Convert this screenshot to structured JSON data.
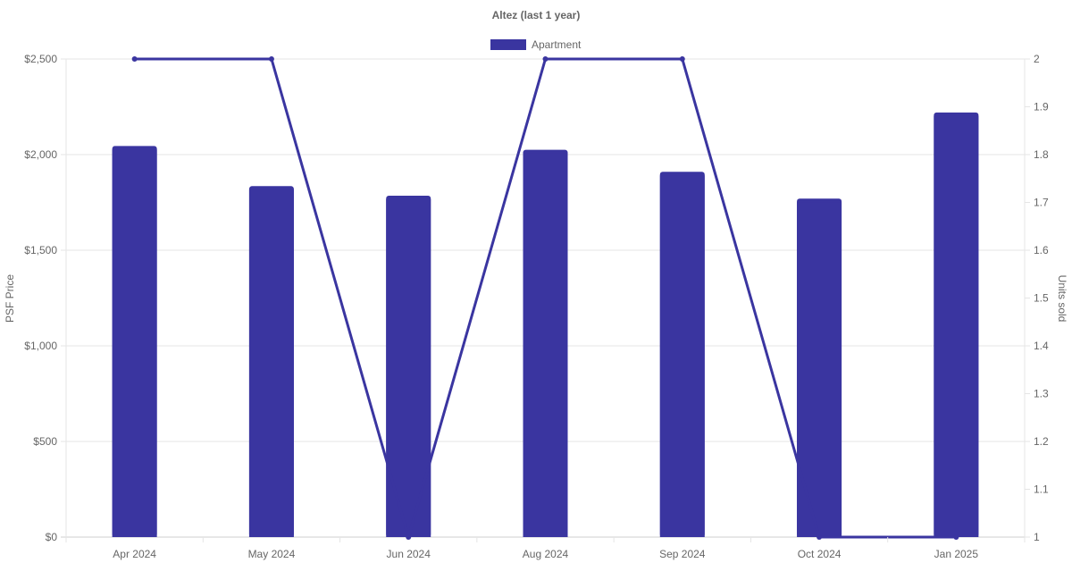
{
  "chart_data": {
    "type": "bar",
    "title": "Altez (last 1 year)",
    "categories": [
      "Apr 2024",
      "May 2024",
      "Jun 2024",
      "Aug 2024",
      "Sep 2024",
      "Oct 2024",
      "Jan 2025"
    ],
    "series": [
      {
        "name": "Apartment",
        "type": "bar",
        "axis": "left",
        "color": "#3a35a0",
        "values": [
          2045,
          1835,
          1785,
          2025,
          1910,
          1770,
          2220
        ]
      },
      {
        "type": "line",
        "axis": "right",
        "color": "#3a35a0",
        "values": [
          2,
          2,
          1,
          2,
          2,
          1,
          1
        ]
      }
    ],
    "ylabel": "PSF Price",
    "ylim": [
      0,
      2500
    ],
    "yticks": [
      "$0",
      "$500",
      "$1,000",
      "$1,500",
      "$2,000",
      "$2,500"
    ],
    "y2label": "Units sold",
    "y2lim": [
      1,
      2
    ],
    "y2ticks": [
      "1",
      "1.1",
      "1.2",
      "1.3",
      "1.4",
      "1.5",
      "1.6",
      "1.7",
      "1.8",
      "1.9",
      "2"
    ],
    "grid": true,
    "legend": "top-center"
  }
}
